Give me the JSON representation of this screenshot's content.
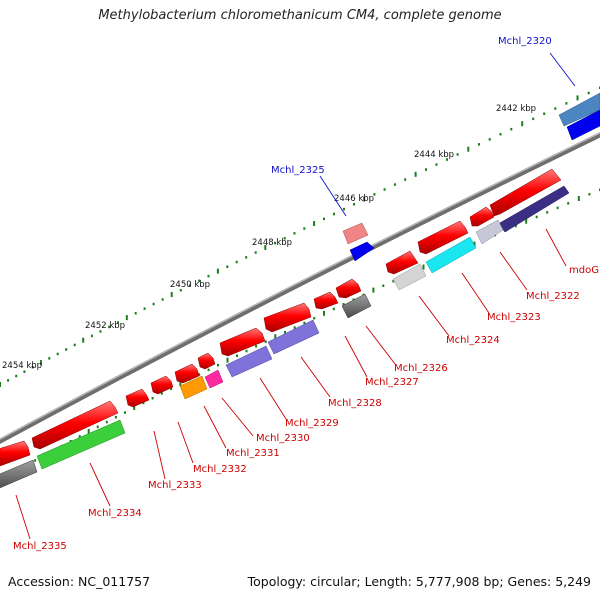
{
  "title": "Methylobacterium chloromethanicum CM4, complete genome",
  "footer": {
    "accession": "Accession: NC_011757",
    "topology": "Topology: circular; Length: 5,777,908 bp; Genes: 5,249"
  },
  "colors": {
    "backbone": "#808080",
    "tick": "#1b7d1b",
    "forward": "#e00000",
    "label_red": "#cc0000",
    "label_blue": "#1111cc"
  },
  "scale_labels": [
    "2442 kbp",
    "2444 kbp",
    "2446 kbp",
    "2448 kbp",
    "2450 kbp",
    "2452 kbp",
    "2454 kbp"
  ],
  "gene_labels": [
    {
      "text": "Mchl_2320",
      "color": "blue"
    },
    {
      "text": "Mchl_2325",
      "color": "blue"
    },
    {
      "text": "mdoG",
      "color": "red"
    },
    {
      "text": "Mchl_2322",
      "color": "red"
    },
    {
      "text": "Mchl_2323",
      "color": "red"
    },
    {
      "text": "Mchl_2324",
      "color": "red"
    },
    {
      "text": "Mchl_2326",
      "color": "red"
    },
    {
      "text": "Mchl_2327",
      "color": "red"
    },
    {
      "text": "Mchl_2328",
      "color": "red"
    },
    {
      "text": "Mchl_2329",
      "color": "red"
    },
    {
      "text": "Mchl_2330",
      "color": "red"
    },
    {
      "text": "Mchl_2331",
      "color": "red"
    },
    {
      "text": "Mchl_2332",
      "color": "red"
    },
    {
      "text": "Mchl_2333",
      "color": "red"
    },
    {
      "text": "Mchl_2334",
      "color": "red"
    },
    {
      "text": "Mchl_2335",
      "color": "red"
    }
  ]
}
